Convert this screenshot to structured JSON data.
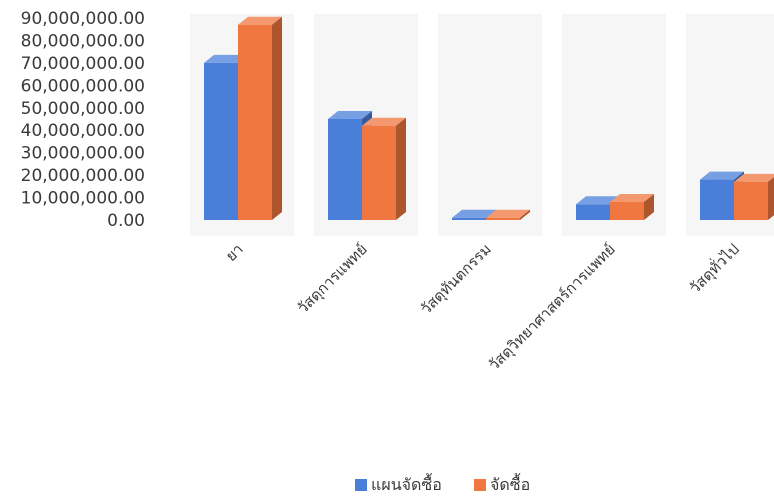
{
  "chart_data": {
    "type": "bar",
    "style": "3d-clustered-column",
    "categories": [
      "ยา",
      "วัสดุการแพทย์",
      "วัสดุทันตกรรม",
      "วัสดุวิทยาศาสตร์การแพทย์",
      "วัสดุทั่วไป"
    ],
    "series": [
      {
        "name": "แผนจัดซื้อ",
        "color": "#4a7fd9",
        "values": [
          70000000,
          45000000,
          1000000,
          7000000,
          18000000
        ]
      },
      {
        "name": "จัดซื้อ",
        "color": "#f0773f",
        "values": [
          87000000,
          42000000,
          1000000,
          8000000,
          17000000
        ]
      }
    ],
    "ylim": [
      0,
      90000000
    ],
    "y_ticks": [
      "0.00",
      "10,000,000.00",
      "20,000,000.00",
      "30,000,000.00",
      "40,000,000.00",
      "50,000,000.00",
      "60,000,000.00",
      "70,000,000.00",
      "80,000,000.00",
      "90,000,000.00"
    ],
    "grid": false,
    "legend_position": "bottom"
  }
}
